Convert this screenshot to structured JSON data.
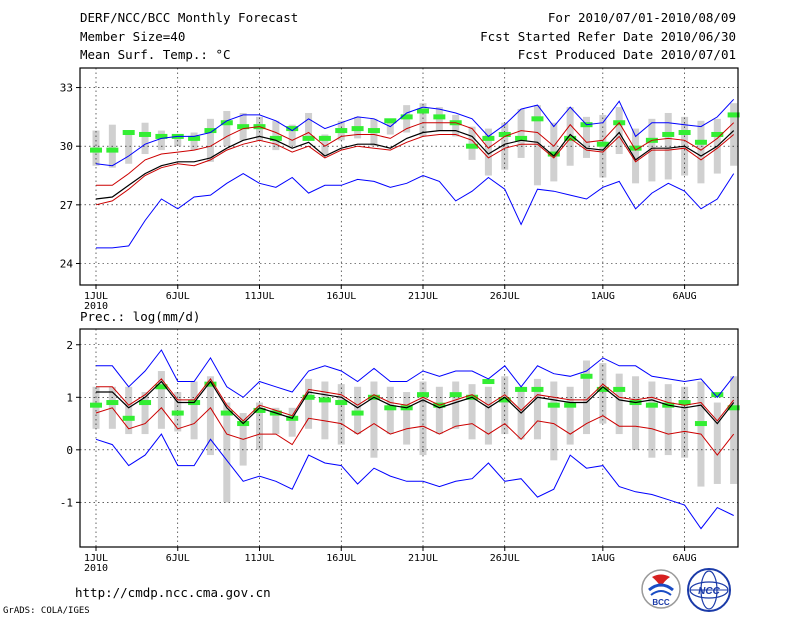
{
  "header": {
    "title": "DERF/NCC/BCC Monthly Forecast",
    "member_size": "Member Size=40",
    "variable": "Mean Surf. Temp.: °C",
    "forecast_period": "For 2010/07/01-2010/08/09",
    "fcst_started": "Fcst Started Refer Date 2010/06/30",
    "fcst_produced": "Fcst Produced Date 2010/07/01"
  },
  "precip_label": "Prec.: log(mm/d)",
  "footer": {
    "url": "http://cmdp.ncc.cma.gov.cn",
    "credit": "GrADS: COLA/IGES"
  },
  "logos": {
    "bcc_text": "BCC",
    "ncc_text": "NCC"
  },
  "chart_data": [
    {
      "type": "line",
      "name": "temperature",
      "ylabel": "Mean Surf. Temp.: °C",
      "ylim": [
        22.9,
        34.0
      ],
      "yticks": [
        24,
        27,
        30,
        33
      ],
      "xticks": [
        {
          "day": 1,
          "label": "1JUL",
          "sub": "2010"
        },
        {
          "day": 6,
          "label": "6JUL"
        },
        {
          "day": 11,
          "label": "11JUL"
        },
        {
          "day": 16,
          "label": "16JUL"
        },
        {
          "day": 21,
          "label": "21JUL"
        },
        {
          "day": 26,
          "label": "26JUL"
        },
        {
          "day": 32,
          "label": "1AUG"
        },
        {
          "day": 37,
          "label": "6AUG"
        }
      ],
      "days": 40,
      "grid": true,
      "series": [
        {
          "name": "ensemble mean",
          "color": "#000000",
          "values": [
            27.3,
            27.4,
            28.0,
            28.6,
            29.0,
            29.2,
            29.2,
            29.4,
            29.9,
            30.3,
            30.5,
            30.3,
            29.9,
            30.2,
            29.5,
            29.9,
            30.1,
            30.1,
            29.9,
            30.4,
            30.7,
            30.8,
            30.8,
            30.5,
            29.6,
            30.1,
            30.3,
            30.2,
            29.5,
            30.6,
            29.9,
            29.8,
            30.7,
            29.3,
            29.9,
            29.9,
            30.0,
            29.5,
            30.0,
            30.8,
            29.8,
            30.0
          ]
        },
        {
          "name": "upper bound",
          "color": "#0000ff",
          "values": [
            29.1,
            29.0,
            29.5,
            30.1,
            30.4,
            30.5,
            30.5,
            30.7,
            31.3,
            31.6,
            31.6,
            31.3,
            30.8,
            31.4,
            30.9,
            31.2,
            31.5,
            31.4,
            31.0,
            31.7,
            32.0,
            31.9,
            31.7,
            31.4,
            30.5,
            31.1,
            31.9,
            32.1,
            31.0,
            32.0,
            31.1,
            31.2,
            32.3,
            30.5,
            31.2,
            31.2,
            31.1,
            31.0,
            31.5,
            32.4,
            31.2,
            31.2
          ]
        },
        {
          "name": "lower bound",
          "color": "#0000ff",
          "values": [
            24.8,
            24.8,
            24.9,
            26.2,
            27.3,
            26.8,
            27.4,
            27.5,
            28.1,
            28.6,
            28.1,
            27.9,
            28.4,
            27.6,
            28.0,
            28.0,
            28.3,
            28.2,
            27.9,
            28.1,
            28.5,
            28.2,
            27.2,
            27.7,
            28.4,
            27.8,
            26.0,
            27.8,
            27.7,
            27.5,
            27.3,
            27.9,
            28.2,
            26.8,
            27.6,
            28.1,
            27.7,
            26.8,
            27.3,
            28.6,
            27.6,
            28.5
          ]
        },
        {
          "name": "red upper",
          "color": "#cc0000",
          "values": [
            28.0,
            28.0,
            28.6,
            29.3,
            29.6,
            29.7,
            29.8,
            30.0,
            30.5,
            30.9,
            31.0,
            30.7,
            30.3,
            30.7,
            30.0,
            30.5,
            30.6,
            30.6,
            30.4,
            30.9,
            31.2,
            31.2,
            31.2,
            30.9,
            29.9,
            30.5,
            30.8,
            30.7,
            30.0,
            31.1,
            30.2,
            30.3,
            31.2,
            29.8,
            30.3,
            30.4,
            30.3,
            29.8,
            30.4,
            31.2,
            30.2,
            30.3
          ]
        },
        {
          "name": "red lower",
          "color": "#cc0000",
          "values": [
            27.0,
            27.2,
            27.8,
            28.5,
            28.9,
            29.1,
            29.0,
            29.3,
            29.8,
            30.1,
            30.3,
            30.1,
            29.7,
            30.0,
            29.4,
            29.8,
            30.0,
            29.9,
            29.8,
            30.2,
            30.5,
            30.6,
            30.6,
            30.3,
            29.4,
            29.9,
            30.1,
            30.1,
            29.4,
            30.4,
            29.8,
            29.7,
            30.5,
            29.2,
            29.8,
            29.8,
            29.9,
            29.3,
            29.9,
            30.6,
            29.7,
            29.9
          ]
        }
      ],
      "range_bars": {
        "low": [
          29.0,
          28.9,
          29.1,
          29.6,
          29.8,
          30.0,
          29.8,
          29.2,
          30.0,
          30.3,
          30.3,
          29.8,
          30.0,
          30.5,
          29.5,
          30.3,
          30.4,
          30.0,
          30.6,
          30.7,
          30.5,
          30.8,
          30.5,
          29.3,
          28.5,
          28.8,
          29.4,
          28.0,
          28.2,
          29.0,
          29.4,
          28.4,
          29.6,
          28.1,
          28.2,
          28.3,
          28.5,
          28.1,
          28.6,
          29.0,
          28.8,
          29.0
        ],
        "high": [
          30.8,
          31.1,
          30.8,
          31.2,
          30.8,
          30.5,
          30.7,
          31.4,
          31.8,
          31.7,
          31.5,
          31.3,
          31.1,
          31.7,
          30.6,
          31.3,
          31.5,
          31.4,
          31.2,
          32.1,
          32.2,
          32.0,
          31.6,
          31.0,
          30.9,
          31.2,
          31.9,
          32.1,
          31.2,
          32.0,
          31.5,
          31.6,
          32.0,
          30.9,
          31.4,
          31.7,
          31.5,
          31.3,
          31.4,
          32.2,
          31.4,
          31.4
        ]
      },
      "obs_marks": [
        29.8,
        29.8,
        30.7,
        30.6,
        30.5,
        30.5,
        30.4,
        30.8,
        31.2,
        31.0,
        31.0,
        30.4,
        30.9,
        30.4,
        30.4,
        30.8,
        30.9,
        30.8,
        31.3,
        31.5,
        31.8,
        31.5,
        31.2,
        30.0,
        30.4,
        30.6,
        30.4,
        31.4,
        29.6,
        30.4,
        31.1,
        30.1,
        31.2,
        29.9,
        30.3,
        30.6,
        30.7,
        30.2,
        30.6,
        31.6,
        30.5,
        30.5
      ]
    },
    {
      "type": "line",
      "name": "precipitation",
      "ylabel": "Prec.: log(mm/d)",
      "ylim": [
        -1.85,
        2.3
      ],
      "yticks": [
        -1,
        0,
        1,
        2
      ],
      "xticks": [
        {
          "day": 1,
          "label": "1JUL",
          "sub": "2010"
        },
        {
          "day": 6,
          "label": "6JUL"
        },
        {
          "day": 11,
          "label": "11JUL"
        },
        {
          "day": 16,
          "label": "16JUL"
        },
        {
          "day": 21,
          "label": "21JUL"
        },
        {
          "day": 26,
          "label": "26JUL"
        },
        {
          "day": 32,
          "label": "1AUG"
        },
        {
          "day": 37,
          "label": "6AUG"
        }
      ],
      "days": 40,
      "grid": true,
      "series": [
        {
          "name": "ensemble mean",
          "color": "#000000",
          "values": [
            1.1,
            1.1,
            0.8,
            1.0,
            1.3,
            0.9,
            0.9,
            1.3,
            0.8,
            0.5,
            0.8,
            0.7,
            0.6,
            1.1,
            1.05,
            1.0,
            0.8,
            1.0,
            0.85,
            0.8,
            0.95,
            0.8,
            0.9,
            1.0,
            0.8,
            1.0,
            0.7,
            1.0,
            0.95,
            0.9,
            0.9,
            1.2,
            0.95,
            0.9,
            0.95,
            0.85,
            0.8,
            0.85,
            0.5,
            0.9,
            0.75,
            0.9
          ]
        },
        {
          "name": "upper bound",
          "color": "#0000ff",
          "values": [
            1.6,
            1.6,
            1.2,
            1.5,
            1.9,
            1.3,
            1.3,
            1.75,
            1.2,
            1.0,
            1.3,
            1.2,
            1.1,
            1.5,
            1.6,
            1.5,
            1.3,
            1.55,
            1.3,
            1.3,
            1.5,
            1.4,
            1.5,
            1.5,
            1.35,
            1.6,
            1.2,
            1.6,
            1.45,
            1.4,
            1.5,
            1.75,
            1.6,
            1.6,
            1.4,
            1.35,
            1.3,
            1.35,
            1.0,
            1.4,
            1.25,
            1.4
          ]
        },
        {
          "name": "lower bound",
          "color": "#0000ff",
          "values": [
            0.2,
            0.1,
            -0.3,
            -0.1,
            0.3,
            -0.3,
            -0.3,
            0.2,
            -0.2,
            -0.6,
            -0.5,
            -0.6,
            -0.75,
            -0.1,
            -0.25,
            -0.3,
            -0.65,
            -0.35,
            -0.5,
            -0.6,
            -0.6,
            -0.7,
            -0.6,
            -0.55,
            -0.25,
            -0.6,
            -0.55,
            -0.9,
            -0.75,
            -0.1,
            -0.35,
            -0.3,
            -0.7,
            -0.8,
            -0.85,
            -0.95,
            -1.05,
            -1.5,
            -1.1,
            -1.25,
            -1.1,
            -1.1
          ]
        },
        {
          "name": "red upper",
          "color": "#cc0000",
          "values": [
            1.2,
            1.2,
            0.85,
            1.05,
            1.35,
            0.95,
            0.95,
            1.35,
            0.85,
            0.55,
            0.85,
            0.75,
            0.65,
            1.15,
            1.1,
            1.05,
            0.85,
            1.05,
            0.9,
            0.85,
            1.0,
            0.85,
            0.95,
            1.05,
            0.85,
            1.05,
            0.75,
            1.05,
            1.0,
            0.95,
            0.95,
            1.25,
            1.0,
            0.95,
            1.0,
            0.9,
            0.85,
            0.9,
            0.55,
            0.95,
            0.8,
            0.95
          ]
        },
        {
          "name": "red lower",
          "color": "#cc0000",
          "values": [
            0.7,
            0.8,
            0.4,
            0.5,
            0.8,
            0.4,
            0.5,
            0.8,
            0.3,
            0.2,
            0.3,
            0.3,
            0.1,
            0.6,
            0.55,
            0.5,
            0.3,
            0.5,
            0.3,
            0.4,
            0.45,
            0.3,
            0.45,
            0.5,
            0.3,
            0.5,
            0.2,
            0.55,
            0.5,
            0.3,
            0.5,
            0.65,
            0.45,
            0.45,
            0.4,
            0.3,
            0.35,
            0.3,
            -0.1,
            0.3,
            0.2,
            0.4
          ]
        }
      ],
      "range_bars": {
        "low": [
          0.4,
          0.4,
          0.3,
          0.3,
          0.4,
          0.35,
          0.2,
          -0.1,
          -1.0,
          -0.3,
          0.0,
          0.3,
          0.25,
          0.4,
          0.2,
          0.1,
          0.3,
          -0.15,
          0.3,
          0.1,
          -0.1,
          0.3,
          0.4,
          0.2,
          0.1,
          0.3,
          0.2,
          0.2,
          -0.2,
          0.1,
          0.3,
          0.5,
          0.3,
          0.0,
          -0.15,
          -0.1,
          -0.15,
          -0.7,
          -0.65,
          -0.65,
          -0.3,
          -0.35
        ],
        "high": [
          1.2,
          1.2,
          1.2,
          1.1,
          1.5,
          1.1,
          1.3,
          1.4,
          0.9,
          0.7,
          0.9,
          0.8,
          0.8,
          1.35,
          1.3,
          1.25,
          1.2,
          1.3,
          1.2,
          1.1,
          1.3,
          1.2,
          1.3,
          1.25,
          1.2,
          1.4,
          1.2,
          1.35,
          1.3,
          1.2,
          1.7,
          1.65,
          1.45,
          1.4,
          1.3,
          1.25,
          1.2,
          1.3,
          0.9,
          1.4,
          1.2,
          1.6
        ]
      },
      "obs_marks": [
        0.85,
        0.9,
        0.6,
        0.9,
        1.2,
        0.7,
        0.9,
        1.25,
        0.7,
        0.5,
        0.75,
        0.7,
        0.6,
        1.0,
        0.95,
        0.9,
        0.7,
        1.0,
        0.8,
        0.8,
        1.05,
        0.85,
        1.05,
        1.0,
        1.3,
        0.95,
        1.15,
        1.15,
        0.85,
        0.85,
        1.4,
        1.15,
        1.15,
        0.9,
        0.85,
        0.85,
        0.9,
        0.5,
        1.05,
        0.8,
        1.0,
        0.8
      ]
    }
  ]
}
